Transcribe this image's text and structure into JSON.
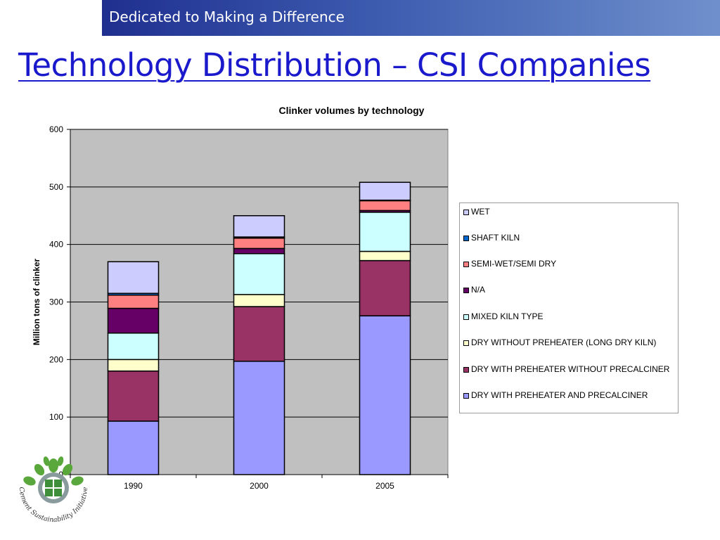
{
  "header": {
    "tagline": "Dedicated to Making a Difference"
  },
  "slide": {
    "title": "Technology Distribution – CSI Companies"
  },
  "logo": {
    "text": "Cement Sustainability Initiative",
    "icon": "csi-leaf-logo-icon"
  },
  "chart_data": {
    "type": "bar",
    "stacked": true,
    "title": "Clinker volumes by technology",
    "xlabel": "",
    "ylabel": "Million tons of clinker",
    "ylim": [
      0,
      600
    ],
    "yticks": [
      0,
      100,
      200,
      300,
      400,
      500,
      600
    ],
    "grid": true,
    "legend_position": "right",
    "categories": [
      "1990",
      "2000",
      "2005"
    ],
    "series": [
      {
        "name": "DRY WITH PREHEATER AND PRECALCINER",
        "color": "#9999ff",
        "values": [
          93,
          197,
          276
        ]
      },
      {
        "name": "DRY WITH PREHEATER WITHOUT PRECALCINER",
        "color": "#993366",
        "values": [
          87,
          95,
          96
        ]
      },
      {
        "name": "DRY WITHOUT PREHEATER (LONG DRY KILN)",
        "color": "#ffffcc",
        "values": [
          20,
          21,
          16
        ]
      },
      {
        "name": "MIXED KILN TYPE",
        "color": "#ccffff",
        "values": [
          46,
          71,
          68
        ]
      },
      {
        "name": "N/A",
        "color": "#660066",
        "values": [
          43,
          9,
          3
        ]
      },
      {
        "name": "SEMI-WET/SEMI DRY",
        "color": "#ff8080",
        "values": [
          23,
          18,
          17
        ]
      },
      {
        "name": "SHAFT KILN",
        "color": "#0066cc",
        "values": [
          3,
          2,
          1
        ]
      },
      {
        "name": "WET",
        "color": "#ccccff",
        "values": [
          55,
          37,
          31
        ]
      }
    ]
  }
}
